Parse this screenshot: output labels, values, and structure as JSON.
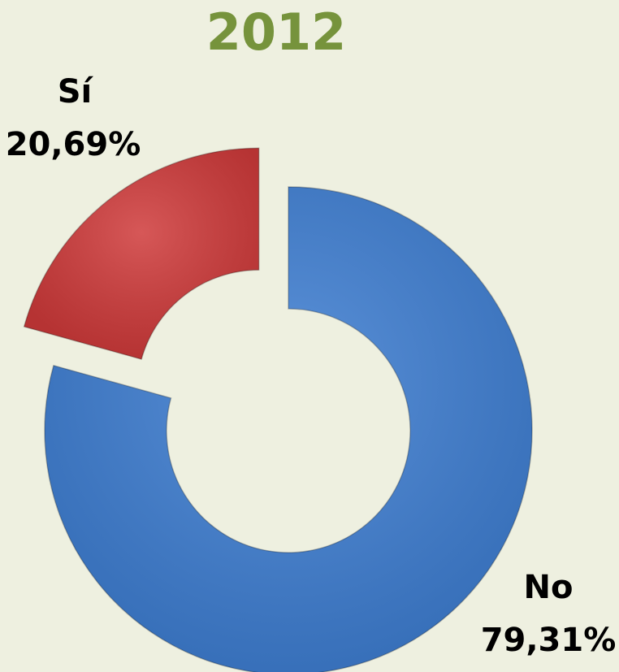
{
  "chart_data": {
    "type": "donut",
    "title": "2012",
    "categories": [
      "No",
      "Sí"
    ],
    "values": [
      79.31,
      20.69
    ],
    "value_labels": [
      "79,31%",
      "20,69%"
    ],
    "colors": [
      "#3f7fd3",
      "#cf3a3a"
    ],
    "exploded": [
      "Sí"
    ]
  }
}
